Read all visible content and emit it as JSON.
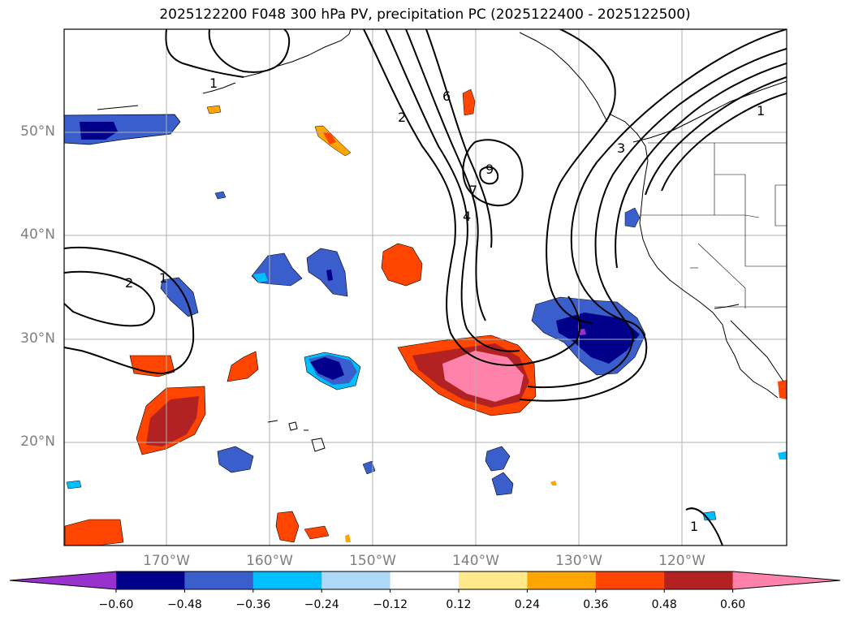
{
  "title": "2025122200 F048 300 hPa PV, precipitation PC (2025122400 - 2025122500)",
  "lat_labels": [
    "50°N",
    "40°N",
    "30°N",
    "20°N"
  ],
  "lon_labels": [
    "170°W",
    "160°W",
    "150°W",
    "140°W",
    "130°W",
    "120°W"
  ],
  "colorbar": {
    "ticks": [
      "−0.60",
      "−0.48",
      "−0.36",
      "−0.24",
      "−0.12",
      "0.12",
      "0.24",
      "0.36",
      "0.48",
      "0.60"
    ],
    "colors": [
      "#9932cc",
      "#00008b",
      "#3a5fcd",
      "#00bfff",
      "#add8f7",
      "#ffffff",
      "#ffe98a",
      "#ffa500",
      "#ff4500",
      "#b22222",
      "#ff82ab"
    ]
  },
  "contour_labels": [
    "1",
    "2",
    "1",
    "2",
    "9",
    "6",
    "7",
    "4",
    "3",
    "1",
    "1"
  ]
}
